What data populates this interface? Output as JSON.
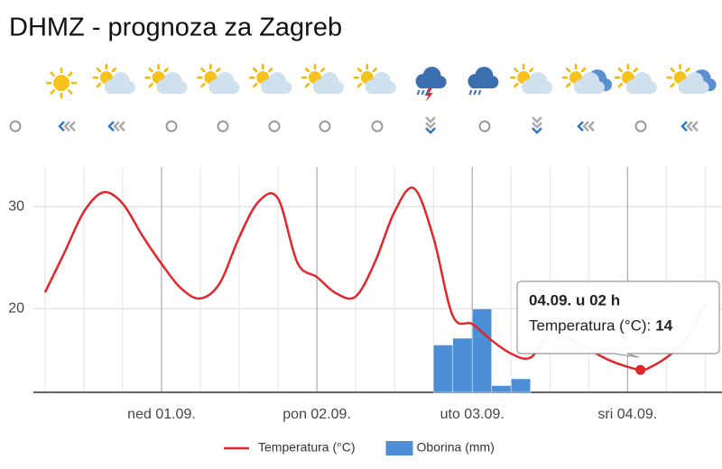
{
  "chart_data": {
    "type": "line",
    "title": "DHMZ - prognoza za Zagreb",
    "xlim": [
      -19.8,
      86.6
    ],
    "ylim": [
      11.8,
      33.9
    ],
    "y2lim": [
      0,
      10
    ],
    "yticks": [
      20,
      30
    ],
    "xticks": [
      {
        "value": 0,
        "label": "ned 01.09."
      },
      {
        "value": 24,
        "label": "pon 02.09."
      },
      {
        "value": 48,
        "label": "uto 03.09."
      },
      {
        "value": 72,
        "label": "sri 04.09."
      }
    ],
    "grid": true,
    "series": [
      {
        "name": "Temperatura (°C)",
        "type": "line",
        "color": "#e3262c",
        "x": [
          -18,
          -15,
          -12,
          -9,
          -6,
          -3,
          0,
          3,
          6,
          9,
          12,
          15,
          18,
          21,
          24,
          27,
          30,
          33,
          36,
          39,
          42,
          45,
          48,
          51,
          54,
          57,
          60,
          63,
          66,
          69,
          72,
          74,
          75,
          78,
          81,
          84
        ],
        "values": [
          21.6,
          25.5,
          29.5,
          31.4,
          30.3,
          27.2,
          24.4,
          22.0,
          21.0,
          22.5,
          27.0,
          30.5,
          30.8,
          24.5,
          23.1,
          21.5,
          21.2,
          24.6,
          29.5,
          31.8,
          27.0,
          19.3,
          18.5,
          16.9,
          15.6,
          15.2,
          17.5,
          17.0,
          16.0,
          15.0,
          14.3,
          14,
          14.1,
          15.2,
          17.0,
          20.5
        ]
      },
      {
        "name": "Oborina (mm)",
        "type": "bar",
        "axis": "y2",
        "color": "#4d8fd6",
        "x": [
          43.5,
          46.5,
          49.5,
          52.5,
          55.5
        ],
        "values": [
          2.1,
          2.4,
          3.7,
          0.3,
          0.6
        ]
      }
    ],
    "tooltip": {
      "title": "04.09. u 02 h",
      "label": "Temperatura (°C):",
      "x": 74,
      "value": 14
    }
  }
}
